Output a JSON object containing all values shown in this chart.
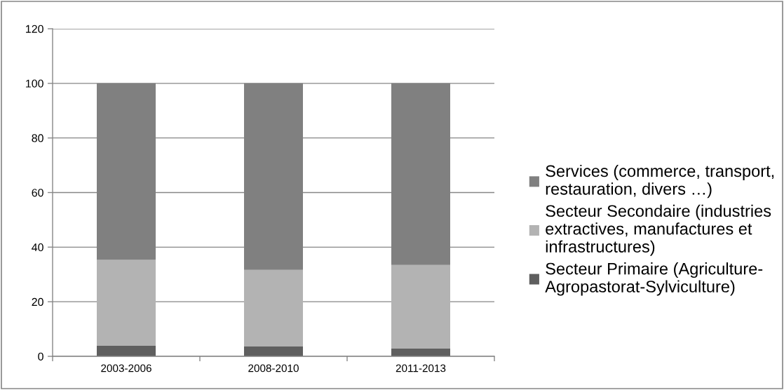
{
  "chart_data": {
    "type": "bar",
    "stacked": true,
    "categories": [
      "2003-2006",
      "2008-2010",
      "2011-2013"
    ],
    "series": [
      {
        "name": "Secteur Primaire (Agriculture-Agropastorat-Sylviculture)",
        "color": "#5f5f5f",
        "values": [
          4.0,
          3.7,
          2.8
        ]
      },
      {
        "name": "Secteur Secondaire (industries extractives, manufactures et infrastructures)",
        "color": "#b3b3b3",
        "values": [
          31.3,
          28.0,
          30.7
        ]
      },
      {
        "name": "Services (commerce, transport, restauration, divers …)",
        "color": "#808080",
        "values": [
          64.7,
          68.3,
          66.5
        ]
      }
    ],
    "ylim": [
      0,
      120
    ],
    "yticks": [
      0,
      20,
      40,
      60,
      80,
      100,
      120
    ],
    "grid": "y",
    "legend": "right"
  }
}
